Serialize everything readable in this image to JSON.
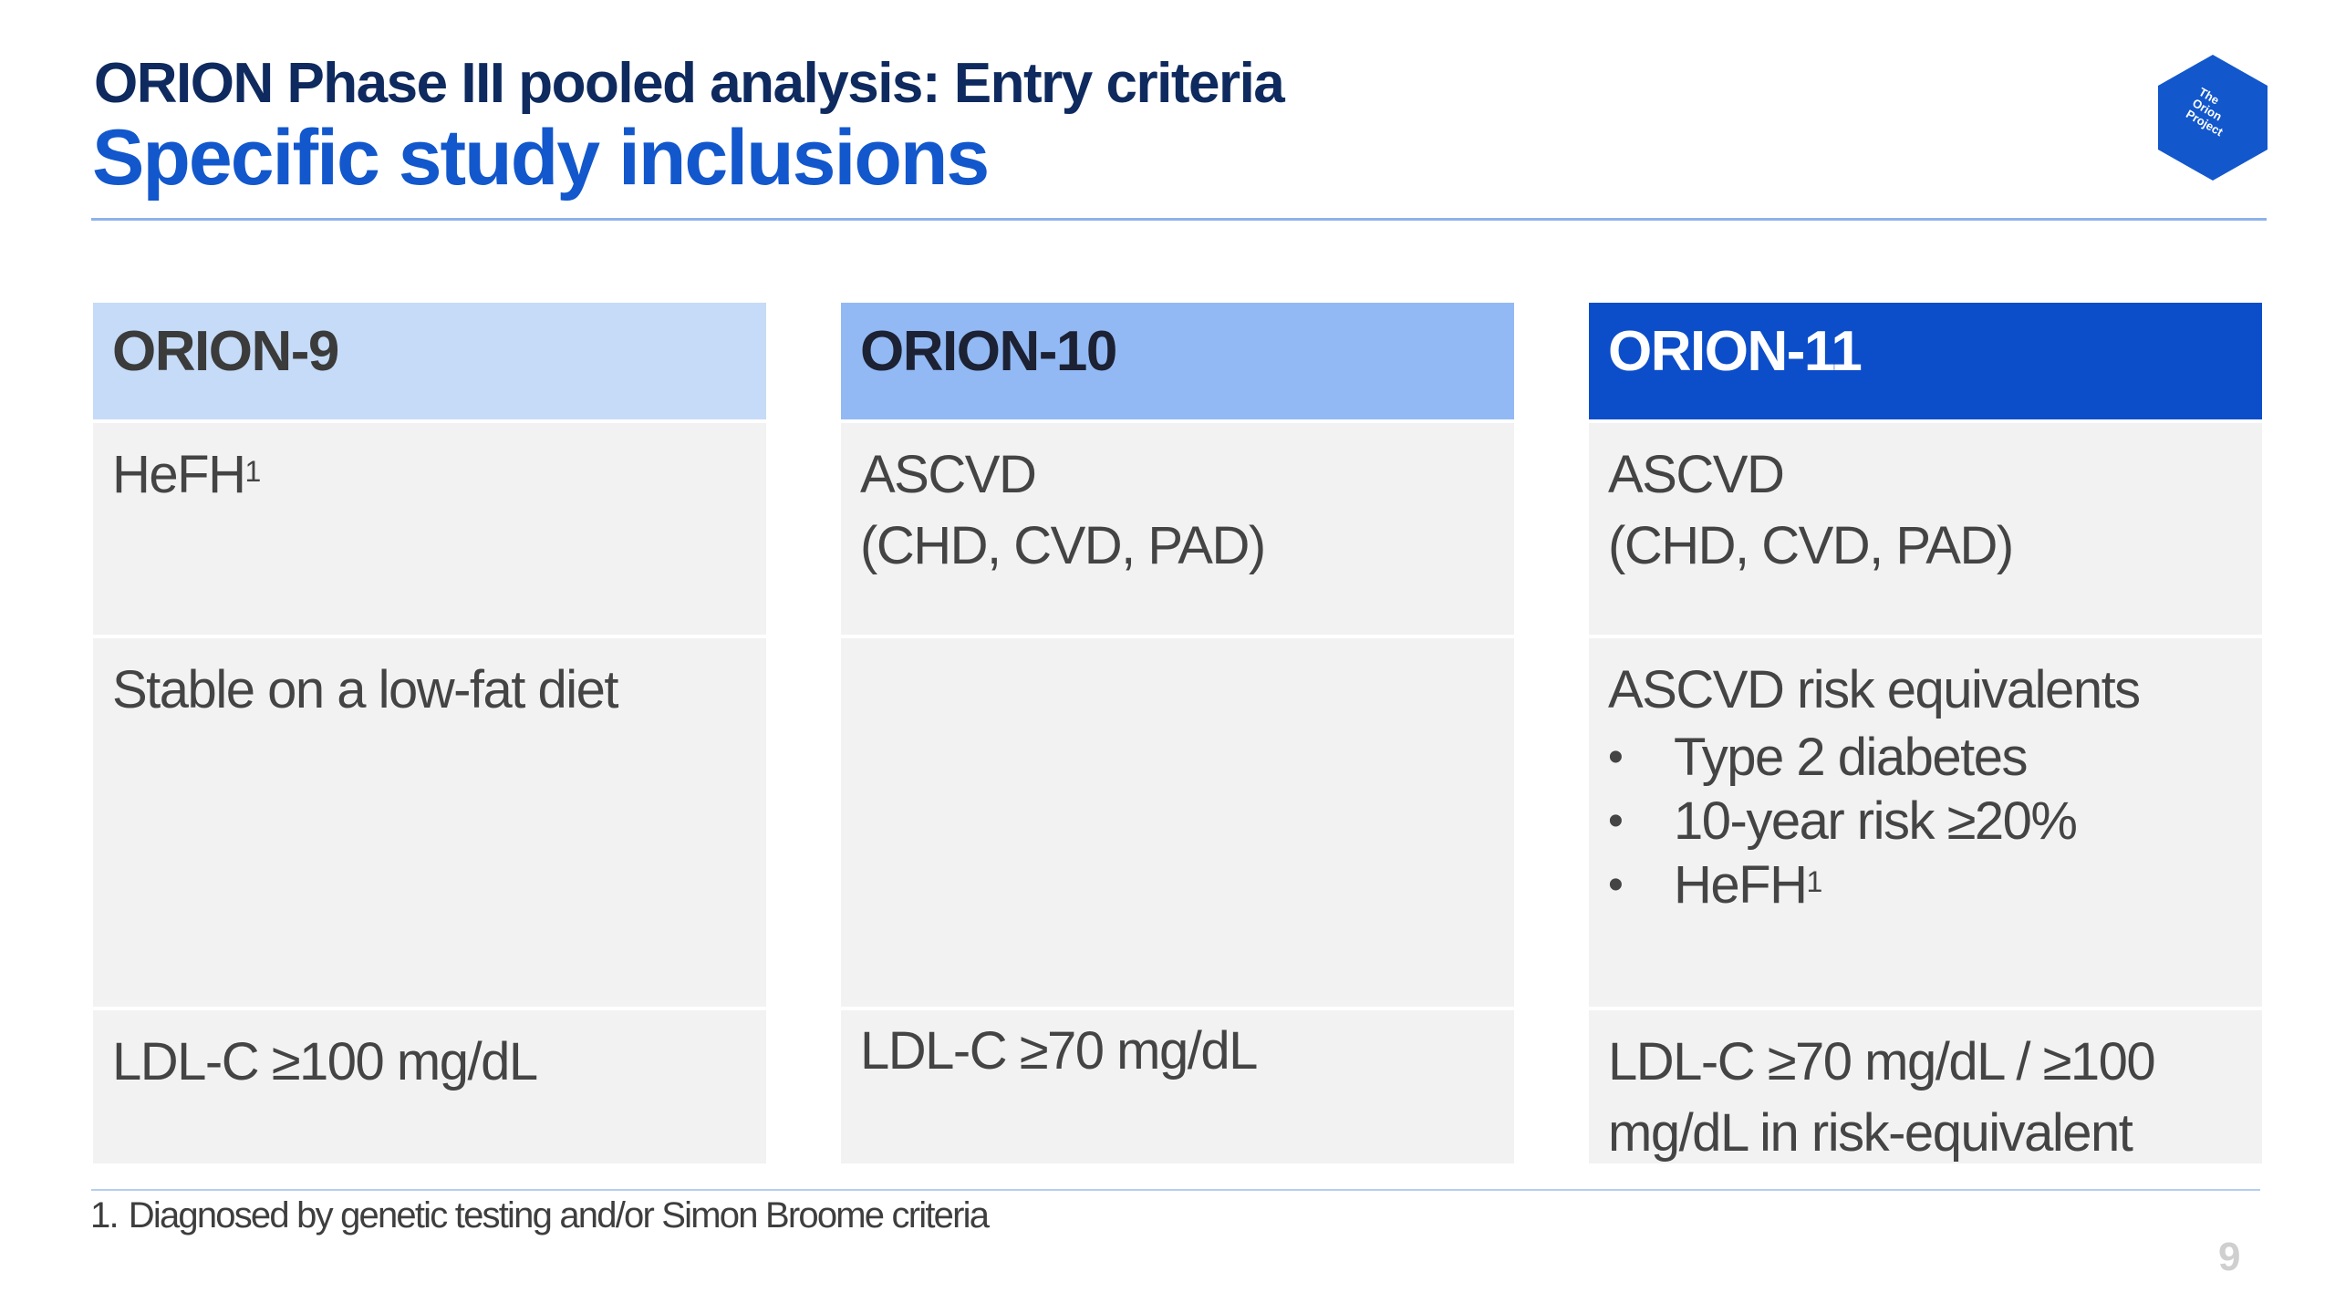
{
  "header": {
    "title": "ORION Phase III pooled analysis: Entry criteria",
    "subtitle": "Specific study inclusions",
    "logo_text": [
      "The",
      "Orion",
      "Project"
    ],
    "logo_color": "#1257cc"
  },
  "columns": [
    {
      "name": "ORION-9",
      "header_color": "#c5dbf7",
      "row1": {
        "text": "HeFH",
        "sup": "1"
      },
      "row2": {
        "text": "Stable on a low-fat diet"
      },
      "row3": {
        "text": "LDL-C ≥100 mg/dL"
      }
    },
    {
      "name": "ORION-10",
      "header_color": "#92b9f4",
      "row1": {
        "line1": "ASCVD",
        "line2": "(CHD, CVD, PAD)"
      },
      "row2": {
        "text": ""
      },
      "row3": {
        "text": "LDL-C ≥70 mg/dL"
      }
    },
    {
      "name": "ORION-11",
      "header_color": "#0c4dc9",
      "row1": {
        "line1": "ASCVD",
        "line2": "(CHD, CVD, PAD)"
      },
      "row2": {
        "heading": "ASCVD risk equivalents",
        "bullets": [
          "Type 2 diabetes",
          "10-year risk ≥20%",
          "HeFH"
        ],
        "bullet3_sup": "1"
      },
      "row3": {
        "line1": "LDL-C ≥70 mg/dL / ≥100",
        "line2": "mg/dL in risk-equivalent"
      }
    }
  ],
  "footnote": {
    "number": "1.",
    "text": "Diagnosed by genetic testing and/or Simon Broome criteria"
  },
  "page_number": "9"
}
